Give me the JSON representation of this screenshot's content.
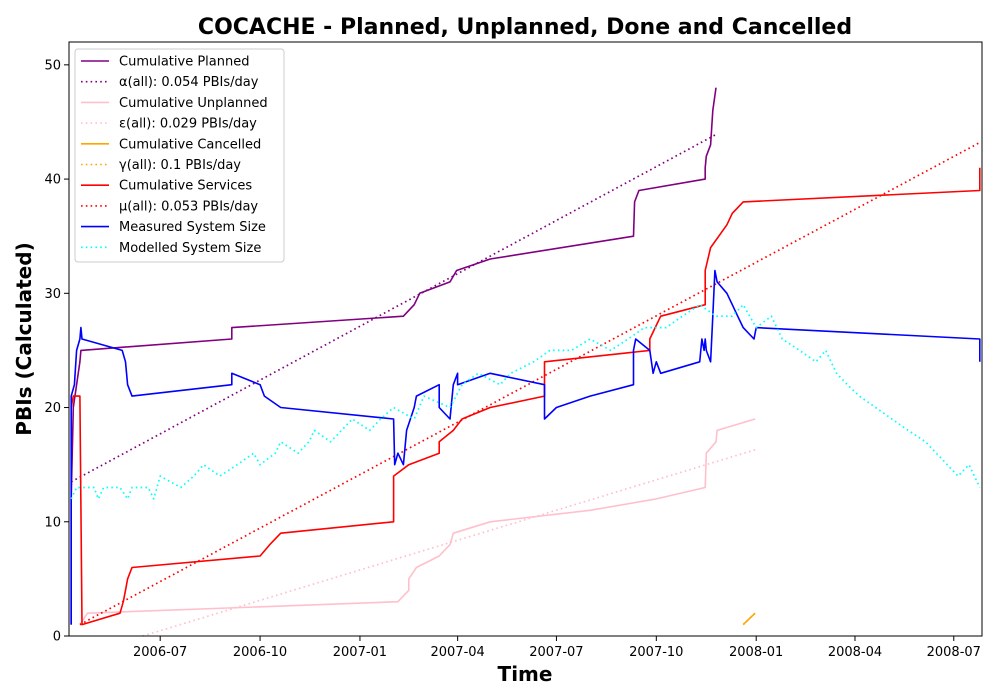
{
  "chart_data": {
    "type": "line",
    "title": "COCACHE - Planned, Unplanned, Done  and Cancelled",
    "xlabel": "Time",
    "ylabel": "PBIs (Calculated)",
    "x_type": "date",
    "xlim": [
      "2006-04-08",
      "2008-07-27"
    ],
    "ylim": [
      0,
      52
    ],
    "x_ticks": [
      "2006-07",
      "2006-10",
      "2007-01",
      "2007-04",
      "2007-07",
      "2007-10",
      "2008-01",
      "2008-04",
      "2008-07"
    ],
    "y_ticks": [
      0,
      10,
      20,
      30,
      40,
      50
    ],
    "grid": false,
    "legend_position": "top-left",
    "series": [
      {
        "name": "Cumulative Planned",
        "color": "#800080",
        "style": "solid",
        "points": [
          [
            "2006-04-10",
            1
          ],
          [
            "2006-04-10",
            12
          ],
          [
            "2006-04-12",
            20
          ],
          [
            "2006-04-15",
            22
          ],
          [
            "2006-04-18",
            24
          ],
          [
            "2006-04-19",
            25
          ],
          [
            "2006-09-05",
            26
          ],
          [
            "2006-09-05",
            27
          ],
          [
            "2007-02-10",
            28
          ],
          [
            "2007-02-20",
            29
          ],
          [
            "2007-02-25",
            30
          ],
          [
            "2007-03-25",
            31
          ],
          [
            "2007-03-31",
            32
          ],
          [
            "2007-05-01",
            33
          ],
          [
            "2007-09-10",
            35
          ],
          [
            "2007-09-11",
            38
          ],
          [
            "2007-09-15",
            39
          ],
          [
            "2007-11-15",
            40
          ],
          [
            "2007-11-15",
            41
          ],
          [
            "2007-11-16",
            42
          ],
          [
            "2007-11-20",
            43
          ],
          [
            "2007-11-22",
            46
          ],
          [
            "2007-11-25",
            48
          ]
        ]
      },
      {
        "name": "α(all): 0.054 PBIs/day",
        "color": "#800080",
        "style": "dotted",
        "points": [
          [
            "2006-04-10",
            13.5
          ],
          [
            "2007-11-25",
            43.9
          ]
        ]
      },
      {
        "name": "Cumulative Unplanned",
        "color": "#ffc0cb",
        "style": "solid",
        "points": [
          [
            "2006-04-18",
            1
          ],
          [
            "2006-04-25",
            2
          ],
          [
            "2007-02-05",
            3
          ],
          [
            "2007-02-15",
            4
          ],
          [
            "2007-02-15",
            5
          ],
          [
            "2007-02-22",
            6
          ],
          [
            "2007-03-15",
            7
          ],
          [
            "2007-03-25",
            8
          ],
          [
            "2007-03-28",
            9
          ],
          [
            "2007-05-01",
            10
          ],
          [
            "2007-08-01",
            11
          ],
          [
            "2007-10-01",
            12
          ],
          [
            "2007-11-15",
            13
          ],
          [
            "2007-11-16",
            16
          ],
          [
            "2007-11-25",
            17
          ],
          [
            "2007-11-26",
            18
          ],
          [
            "2007-12-31",
            19
          ]
        ]
      },
      {
        "name": "ε(all): 0.029 PBIs/day",
        "color": "#ffc0cb",
        "style": "dotted",
        "points": [
          [
            "2006-06-15",
            0
          ],
          [
            "2007-12-31",
            16.3
          ]
        ]
      },
      {
        "name": "Cumulative Cancelled",
        "color": "#ffa500",
        "style": "solid",
        "points": [
          [
            "2007-12-20",
            1
          ],
          [
            "2007-12-31",
            2
          ]
        ]
      },
      {
        "name": "γ(all): 0.1 PBIs/day",
        "color": "#ffa500",
        "style": "dotted",
        "points": [
          [
            "2007-12-20",
            1
          ],
          [
            "2007-12-31",
            2
          ]
        ]
      },
      {
        "name": "Cumulative Services",
        "color": "#ff0000",
        "style": "solid",
        "points": [
          [
            "2006-04-10",
            20
          ],
          [
            "2006-04-12",
            21
          ],
          [
            "2006-04-18",
            21
          ],
          [
            "2006-04-20",
            1
          ],
          [
            "2006-05-25",
            2
          ],
          [
            "2006-05-28",
            3
          ],
          [
            "2006-05-30",
            4
          ],
          [
            "2006-06-01",
            5
          ],
          [
            "2006-06-05",
            6
          ],
          [
            "2006-10-01",
            7
          ],
          [
            "2006-10-10",
            8
          ],
          [
            "2006-10-20",
            9
          ],
          [
            "2007-02-01",
            10
          ],
          [
            "2007-02-01",
            14
          ],
          [
            "2007-02-15",
            15
          ],
          [
            "2007-03-15",
            16
          ],
          [
            "2007-03-15",
            17
          ],
          [
            "2007-03-28",
            18
          ],
          [
            "2007-04-05",
            19
          ],
          [
            "2007-05-01",
            20
          ],
          [
            "2007-06-20",
            21
          ],
          [
            "2007-06-20",
            24
          ],
          [
            "2007-09-25",
            25
          ],
          [
            "2007-09-25",
            26
          ],
          [
            "2007-09-30",
            27
          ],
          [
            "2007-10-05",
            28
          ],
          [
            "2007-11-15",
            29
          ],
          [
            "2007-11-15",
            32
          ],
          [
            "2007-11-20",
            34
          ],
          [
            "2007-12-05",
            36
          ],
          [
            "2007-12-10",
            37
          ],
          [
            "2007-12-20",
            38
          ],
          [
            "2008-07-25",
            39
          ],
          [
            "2008-07-25",
            41
          ]
        ]
      },
      {
        "name": "μ(all): 0.053 PBIs/day",
        "color": "#ff0000",
        "style": "dotted",
        "points": [
          [
            "2006-04-18",
            1
          ],
          [
            "2008-07-25",
            43.2
          ]
        ]
      },
      {
        "name": "Measured System Size",
        "color": "#0000ff",
        "style": "solid",
        "points": [
          [
            "2006-04-10",
            1
          ],
          [
            "2006-04-10",
            21
          ],
          [
            "2006-04-13",
            22
          ],
          [
            "2006-04-15",
            25
          ],
          [
            "2006-04-18",
            26
          ],
          [
            "2006-04-19",
            27
          ],
          [
            "2006-04-20",
            26
          ],
          [
            "2006-05-27",
            25
          ],
          [
            "2006-05-30",
            24
          ],
          [
            "2006-06-01",
            22
          ],
          [
            "2006-06-05",
            21
          ],
          [
            "2006-09-05",
            22
          ],
          [
            "2006-09-05",
            23
          ],
          [
            "2006-10-01",
            22
          ],
          [
            "2006-10-05",
            21
          ],
          [
            "2006-10-20",
            20
          ],
          [
            "2007-02-01",
            19
          ],
          [
            "2007-02-02",
            15
          ],
          [
            "2007-02-05",
            16
          ],
          [
            "2007-02-10",
            15
          ],
          [
            "2007-02-13",
            18
          ],
          [
            "2007-02-20",
            20
          ],
          [
            "2007-02-22",
            21
          ],
          [
            "2007-03-15",
            22
          ],
          [
            "2007-03-15",
            20
          ],
          [
            "2007-03-25",
            19
          ],
          [
            "2007-03-26",
            20
          ],
          [
            "2007-03-28",
            22
          ],
          [
            "2007-04-01",
            23
          ],
          [
            "2007-04-01",
            22
          ],
          [
            "2007-05-01",
            23
          ],
          [
            "2007-06-20",
            22
          ],
          [
            "2007-06-20",
            19
          ],
          [
            "2007-07-01",
            20
          ],
          [
            "2007-08-01",
            21
          ],
          [
            "2007-09-10",
            22
          ],
          [
            "2007-09-10",
            25
          ],
          [
            "2007-09-12",
            26
          ],
          [
            "2007-09-25",
            25
          ],
          [
            "2007-09-28",
            23
          ],
          [
            "2007-10-01",
            24
          ],
          [
            "2007-10-05",
            23
          ],
          [
            "2007-11-10",
            24
          ],
          [
            "2007-11-12",
            26
          ],
          [
            "2007-11-14",
            25
          ],
          [
            "2007-11-15",
            26
          ],
          [
            "2007-11-16",
            25
          ],
          [
            "2007-11-20",
            24
          ],
          [
            "2007-11-22",
            28
          ],
          [
            "2007-11-24",
            32
          ],
          [
            "2007-11-26",
            31
          ],
          [
            "2007-12-05",
            30
          ],
          [
            "2007-12-10",
            29
          ],
          [
            "2007-12-15",
            28
          ],
          [
            "2007-12-20",
            27
          ],
          [
            "2007-12-30",
            26
          ],
          [
            "2008-01-01",
            27
          ],
          [
            "2008-07-25",
            26
          ],
          [
            "2008-07-25",
            24
          ]
        ]
      },
      {
        "name": "Modelled System Size",
        "color": "#00ffff",
        "style": "dotted",
        "points": [
          [
            "2006-04-10",
            12
          ],
          [
            "2006-04-15",
            13
          ],
          [
            "2006-05-01",
            13
          ],
          [
            "2006-05-05",
            12
          ],
          [
            "2006-05-10",
            13
          ],
          [
            "2006-05-25",
            13
          ],
          [
            "2006-06-01",
            12
          ],
          [
            "2006-06-05",
            13
          ],
          [
            "2006-06-20",
            13
          ],
          [
            "2006-06-25",
            12
          ],
          [
            "2006-07-01",
            14
          ],
          [
            "2006-07-20",
            13
          ],
          [
            "2006-08-01",
            14
          ],
          [
            "2006-08-10",
            15
          ],
          [
            "2006-08-25",
            14
          ],
          [
            "2006-09-10",
            15
          ],
          [
            "2006-09-25",
            16
          ],
          [
            "2006-10-01",
            15
          ],
          [
            "2006-10-15",
            16
          ],
          [
            "2006-10-20",
            17
          ],
          [
            "2006-11-05",
            16
          ],
          [
            "2006-11-15",
            17
          ],
          [
            "2006-11-20",
            18
          ],
          [
            "2006-12-05",
            17
          ],
          [
            "2006-12-15",
            18
          ],
          [
            "2006-12-25",
            19
          ],
          [
            "2007-01-10",
            18
          ],
          [
            "2007-01-20",
            19
          ],
          [
            "2007-02-01",
            20
          ],
          [
            "2007-02-20",
            19
          ],
          [
            "2007-03-01",
            21
          ],
          [
            "2007-03-25",
            20
          ],
          [
            "2007-04-05",
            22
          ],
          [
            "2007-04-20",
            23
          ],
          [
            "2007-05-10",
            22
          ],
          [
            "2007-05-20",
            23
          ],
          [
            "2007-06-10",
            24
          ],
          [
            "2007-06-25",
            25
          ],
          [
            "2007-07-15",
            25
          ],
          [
            "2007-08-01",
            26
          ],
          [
            "2007-08-20",
            25
          ],
          [
            "2007-09-05",
            26
          ],
          [
            "2007-09-20",
            27
          ],
          [
            "2007-10-10",
            27
          ],
          [
            "2007-10-25",
            28
          ],
          [
            "2007-11-10",
            29
          ],
          [
            "2007-11-25",
            28
          ],
          [
            "2007-12-10",
            28
          ],
          [
            "2007-12-20",
            29
          ],
          [
            "2008-01-01",
            27
          ],
          [
            "2008-01-15",
            28
          ],
          [
            "2008-01-25",
            26
          ],
          [
            "2008-02-10",
            25
          ],
          [
            "2008-02-25",
            24
          ],
          [
            "2008-03-05",
            25
          ],
          [
            "2008-03-15",
            23
          ],
          [
            "2008-03-25",
            22
          ],
          [
            "2008-04-05",
            21
          ],
          [
            "2008-04-20",
            20
          ],
          [
            "2008-05-05",
            19
          ],
          [
            "2008-05-20",
            18
          ],
          [
            "2008-06-05",
            17
          ],
          [
            "2008-06-15",
            16
          ],
          [
            "2008-06-25",
            15
          ],
          [
            "2008-07-05",
            14
          ],
          [
            "2008-07-15",
            15
          ],
          [
            "2008-07-25",
            13
          ]
        ]
      }
    ]
  }
}
